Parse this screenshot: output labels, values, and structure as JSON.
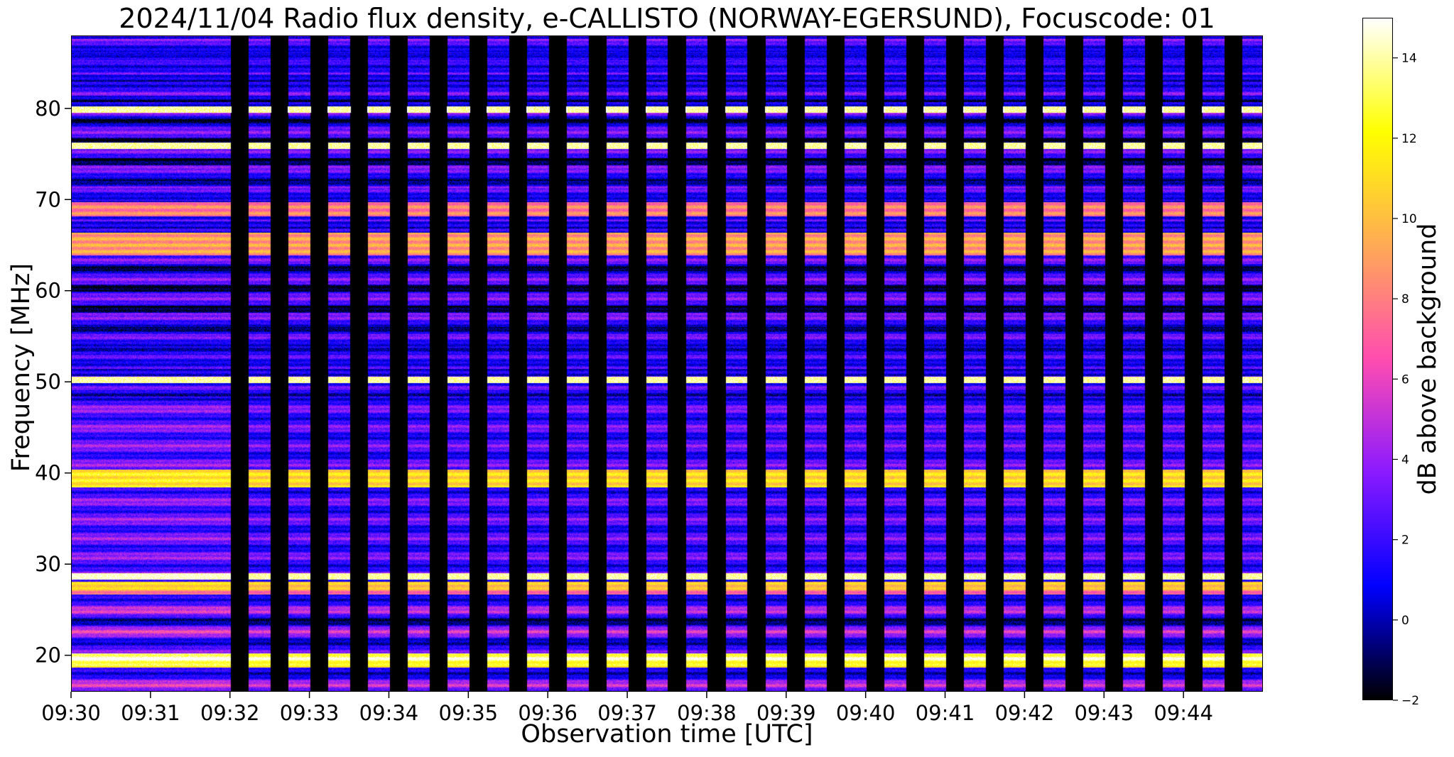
{
  "chart_data": {
    "type": "heatmap",
    "title": "2024/11/04  Radio flux density, e-CALLISTO (NORWAY-EGERSUND), Focuscode: 01",
    "xlabel": "Observation time [UTC]",
    "ylabel": "Frequency [MHz]",
    "colorbar_label": "dB above background",
    "colormap": "gnuplot2",
    "colormap_stops": [
      "#000000",
      "#0000ff",
      "#8a1aff",
      "#ff4db0",
      "#ffaa55",
      "#ffff00",
      "#ffffff"
    ],
    "x_tick_labels": [
      "09:30",
      "09:31",
      "09:32",
      "09:33",
      "09:34",
      "09:35",
      "09:36",
      "09:37",
      "09:38",
      "09:39",
      "09:40",
      "09:41",
      "09:42",
      "09:43",
      "09:44"
    ],
    "x_range_minutes": [
      0,
      15
    ],
    "y_ticks": [
      20,
      30,
      40,
      50,
      60,
      70,
      80
    ],
    "y_range": [
      16,
      88
    ],
    "colorbar_ticks": [
      -2,
      0,
      2,
      4,
      6,
      8,
      10,
      12,
      14
    ],
    "colorbar_range": [
      -2,
      15
    ],
    "gap_start_minute": 2.0,
    "gap_period_minutes": 0.5,
    "gap_fraction": 0.45,
    "bright_lines_mhz": [
      80,
      76,
      50.3,
      28.8
    ],
    "strong_bands": [
      {
        "low": 64,
        "high": 66.5,
        "db": 9
      },
      {
        "low": 38.5,
        "high": 40.5,
        "db": 11
      },
      {
        "low": 18.8,
        "high": 20.3,
        "db": 12
      },
      {
        "low": 68.3,
        "high": 69.8,
        "db": 8
      },
      {
        "low": 26.8,
        "high": 28.2,
        "db": 9
      }
    ]
  }
}
